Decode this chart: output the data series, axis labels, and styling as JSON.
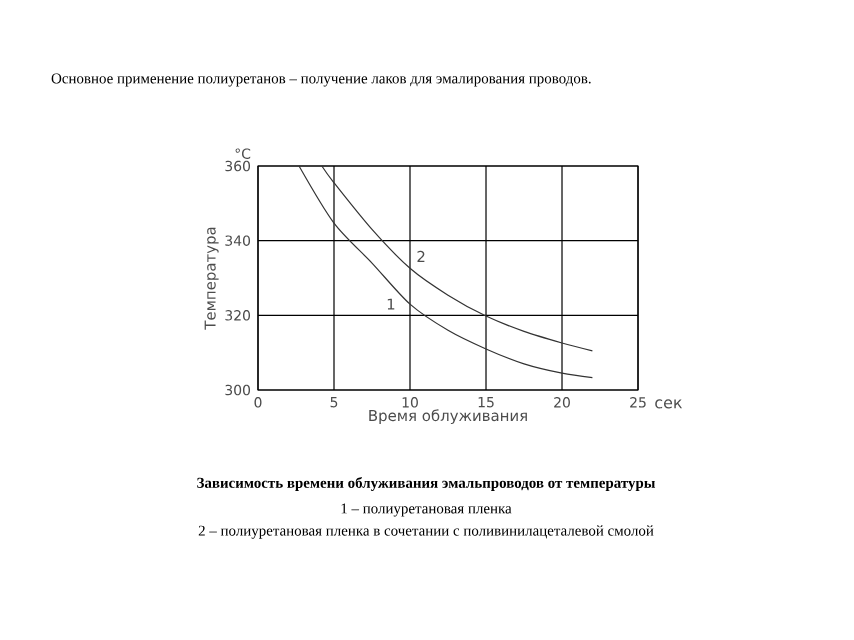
{
  "chart_data": {
    "type": "line",
    "title": "Основное применение полиуретанов – получение лаков для эмалирования проводов.",
    "xlabel": "Время облуживания",
    "ylabel": "Температура",
    "annotations": [
      "°C",
      "сек",
      "Зависимость времени облуживания эмальпроводов от температуры",
      "1 – полиуретановая пленка",
      "2 – полиуретановая пленка в сочетании с поливинилацеталевой смолой"
    ],
    "series": [
      {
        "name": "1",
        "color": "#333333",
        "x": [
          2.7,
          5,
          7.5,
          10,
          12.5,
          15,
          17.5,
          20,
          22
        ],
        "values": [
          360,
          344.7,
          334,
          323,
          316,
          311,
          307,
          304.5,
          303.3
        ]
      },
      {
        "name": "2",
        "color": "#333333",
        "x": [
          4.2,
          5,
          7.5,
          10,
          12.5,
          15,
          17.5,
          20,
          22
        ],
        "values": [
          360,
          355.5,
          343,
          332.6,
          325.4,
          319.8,
          315.7,
          312.6,
          310.5
        ]
      }
    ],
    "xlim": [
      0,
      25
    ],
    "ylim": [
      300,
      360
    ],
    "xticks": [
      0,
      5,
      10,
      15,
      20,
      25
    ],
    "yticks": [
      300,
      320,
      340,
      360
    ],
    "grid": true,
    "marker": "none",
    "line_style": "solid"
  }
}
